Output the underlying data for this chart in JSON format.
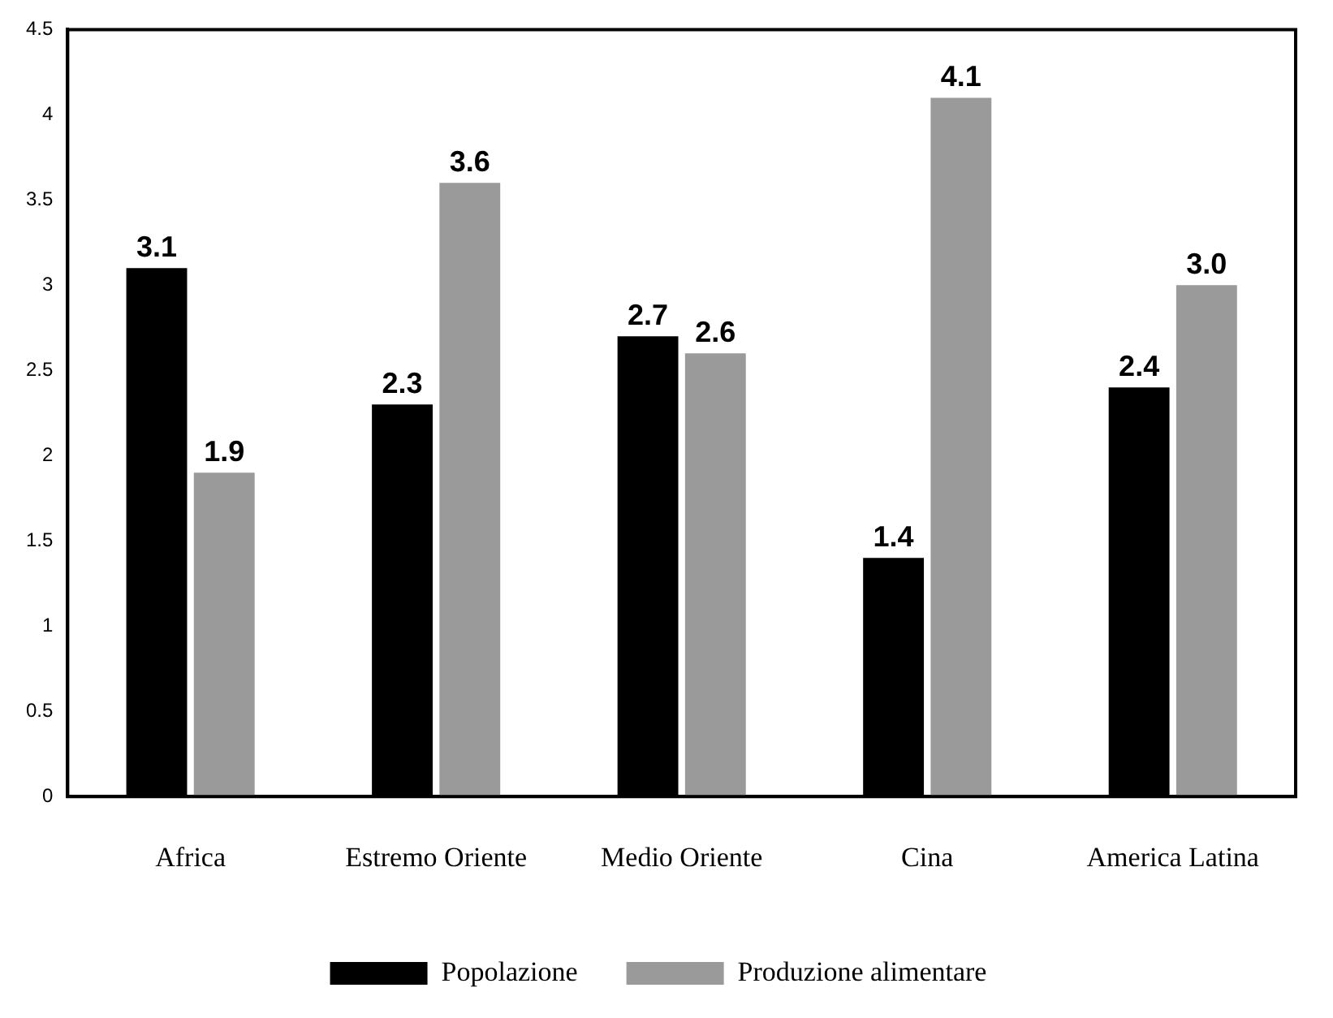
{
  "chart_data": {
    "type": "bar",
    "categories": [
      "Africa",
      "Estremo Oriente",
      "Medio Oriente",
      "Cina",
      "America Latina"
    ],
    "series": [
      {
        "name": "Popolazione",
        "color": "#000000",
        "values": [
          3.1,
          2.3,
          2.7,
          1.4,
          2.4
        ],
        "value_labels": [
          "3.1",
          "2.3",
          "2.7",
          "1.4",
          "2.4"
        ]
      },
      {
        "name": "Produzione alimentare",
        "color": "#9a9a9a",
        "values": [
          1.9,
          3.6,
          2.6,
          4.1,
          3.0
        ],
        "value_labels": [
          "1.9",
          "3.6",
          "2.6",
          "4.1",
          "3.0"
        ]
      }
    ],
    "ylim": [
      0,
      4.5
    ],
    "yticks": [
      0,
      0.5,
      1,
      1.5,
      2,
      2.5,
      3,
      3.5,
      4,
      4.5
    ],
    "grid": false,
    "legend": "bottom"
  }
}
